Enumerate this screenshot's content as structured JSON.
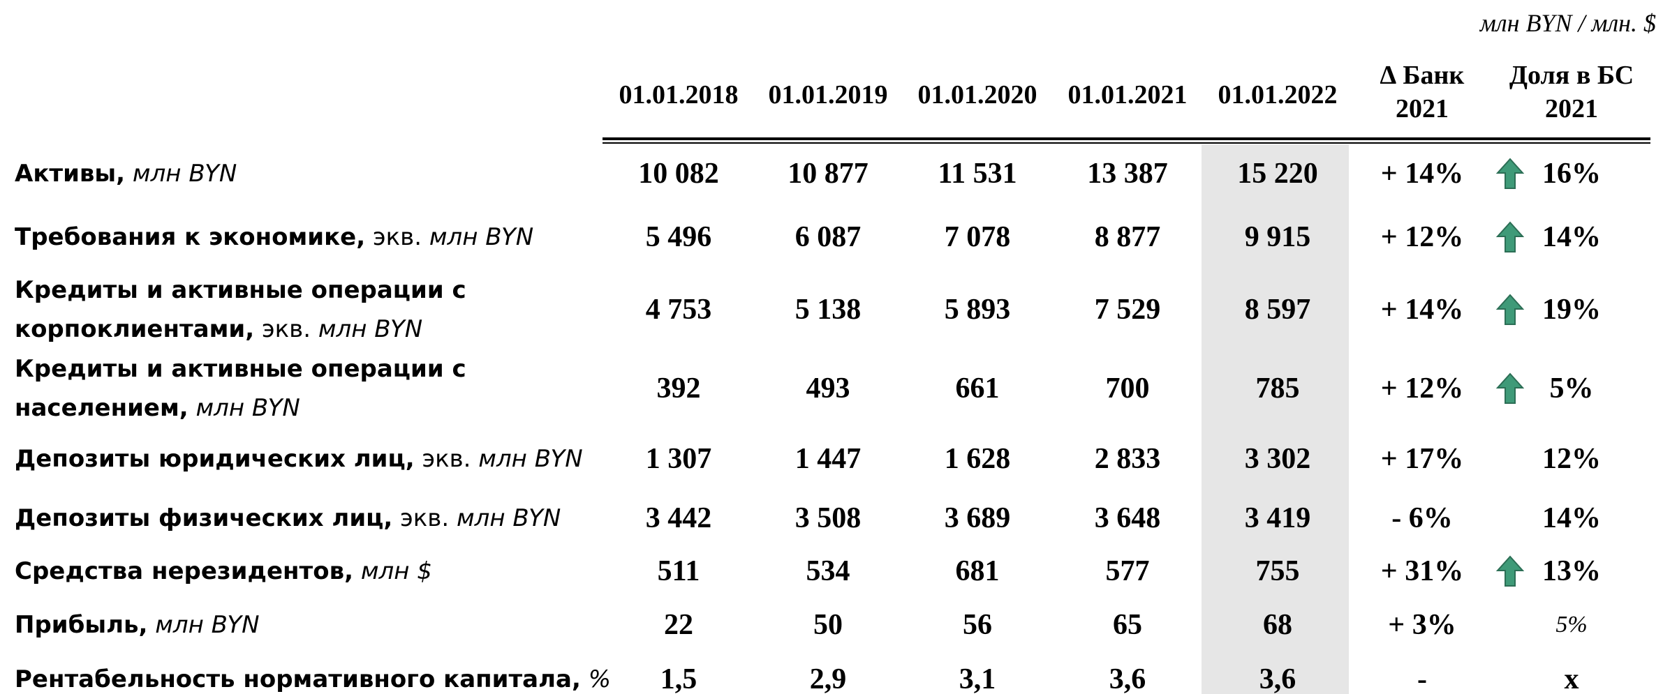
{
  "unit": "млн BYN / млн. $",
  "table": {
    "columns": [
      [
        "01.01.2018"
      ],
      [
        "01.01.2019"
      ],
      [
        "01.01.2020"
      ],
      [
        "01.01.2021"
      ],
      [
        "01.01.2022"
      ],
      [
        "∆ Банк",
        "2021"
      ],
      [
        "Доля в БС",
        "2021"
      ]
    ],
    "highlight_column": 4,
    "rows": [
      {
        "label": [
          [
            {
              "text": "Активы,",
              "style": "bold"
            },
            {
              "text": "млн BYN",
              "style": "italic"
            }
          ]
        ],
        "values": [
          "10 082",
          "10 877",
          "11 531",
          "13 387",
          "15 220"
        ],
        "change": "+ 14%",
        "share": "16%",
        "up_arrow": true,
        "share_style": "bold"
      },
      {
        "label": [
          [
            {
              "text": "Требования к экономике,",
              "style": "bold"
            },
            {
              "text": "экв.",
              "style": "plain"
            },
            {
              "text": "млн BYN",
              "style": "italic"
            }
          ]
        ],
        "values": [
          "5 496",
          "6 087",
          "7 078",
          "8 877",
          "9 915"
        ],
        "change": "+ 12%",
        "share": "14%",
        "up_arrow": true,
        "share_style": "bold"
      },
      {
        "label": [
          [
            {
              "text": "Кредиты и активные операции с",
              "style": "bold"
            }
          ],
          [
            {
              "text": "корпоклиентами,",
              "style": "bold"
            },
            {
              "text": "экв.",
              "style": "plain"
            },
            {
              "text": "млн BYN",
              "style": "italic"
            }
          ]
        ],
        "values": [
          "4 753",
          "5 138",
          "5 893",
          "7 529",
          "8 597"
        ],
        "change": "+ 14%",
        "share": "19%",
        "up_arrow": true,
        "share_style": "bold"
      },
      {
        "label": [
          [
            {
              "text": "Кредиты и активные операции с",
              "style": "bold"
            }
          ],
          [
            {
              "text": "населением,",
              "style": "bold"
            },
            {
              "text": "млн BYN",
              "style": "italic"
            }
          ]
        ],
        "values": [
          "392",
          "493",
          "661",
          "700",
          "785"
        ],
        "change": "+ 12%",
        "share": "5%",
        "up_arrow": true,
        "share_style": "bold"
      },
      {
        "label": [
          [
            {
              "text": "Депозиты юридических лиц,",
              "style": "bold"
            },
            {
              "text": "экв.",
              "style": "plain"
            },
            {
              "text": "млн BYN",
              "style": "italic"
            }
          ]
        ],
        "values": [
          "1 307",
          "1 447",
          "1 628",
          "2 833",
          "3 302"
        ],
        "change": "+ 17%",
        "share": "12%",
        "up_arrow": false,
        "share_style": "bold"
      },
      {
        "label": [
          [
            {
              "text": "Депозиты физических лиц,",
              "style": "bold"
            },
            {
              "text": "экв.",
              "style": "plain"
            },
            {
              "text": "млн BYN",
              "style": "italic"
            }
          ]
        ],
        "values": [
          "3 442",
          "3 508",
          "3 689",
          "3 648",
          "3 419"
        ],
        "change": "- 6%",
        "share": "14%",
        "up_arrow": false,
        "share_style": "bold"
      },
      {
        "label": [
          [
            {
              "text": "Средства нерезидентов,",
              "style": "bold"
            },
            {
              "text": "млн $",
              "style": "italic"
            }
          ]
        ],
        "values": [
          "511",
          "534",
          "681",
          "577",
          "755"
        ],
        "change": "+ 31%",
        "share": "13%",
        "up_arrow": true,
        "share_style": "bold"
      },
      {
        "label": [
          [
            {
              "text": "Прибыль,",
              "style": "bold"
            },
            {
              "text": "млн BYN",
              "style": "italic"
            }
          ]
        ],
        "values": [
          "22",
          "50",
          "56",
          "65",
          "68"
        ],
        "change": "+ 3%",
        "share": "5%",
        "up_arrow": false,
        "share_style": "italic"
      },
      {
        "label": [
          [
            {
              "text": "Рентабельность нормативного капитала,",
              "style": "bold"
            },
            {
              "text": "%",
              "style": "italic"
            }
          ]
        ],
        "values": [
          "1,5",
          "2,9",
          "3,1",
          "3,6",
          "3,6"
        ],
        "change": "-",
        "share": "x",
        "up_arrow": false,
        "share_style": "bold"
      }
    ]
  }
}
